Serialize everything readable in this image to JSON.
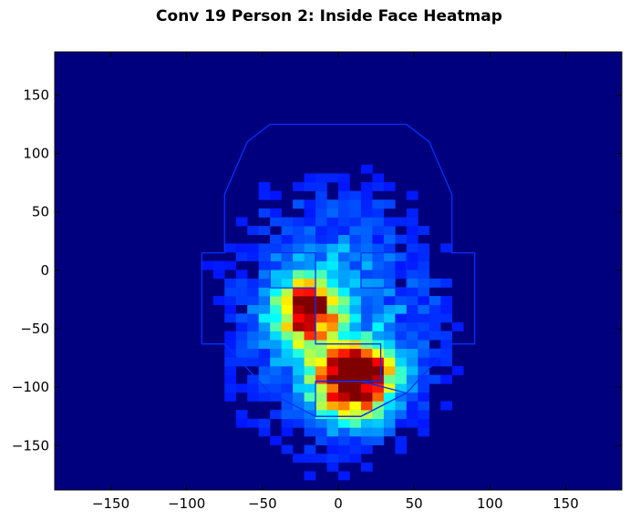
{
  "chart_data": {
    "type": "heatmap",
    "title": "Conv 19 Person 2: Inside Face Heatmap",
    "xlabel": "",
    "ylabel": "",
    "xlim": [
      -187,
      187
    ],
    "ylim": [
      -188,
      187
    ],
    "xticks": [
      -150,
      -100,
      -50,
      0,
      50,
      100,
      150
    ],
    "xtick_labels": [
      "−150",
      "−100",
      "−50",
      "0",
      "50",
      "100",
      "150"
    ],
    "yticks": [
      150,
      100,
      50,
      0,
      -50,
      -100,
      -150
    ],
    "ytick_labels": [
      "150",
      "100",
      "50",
      "0",
      "−50",
      "−100",
      "−150"
    ],
    "colormap": "jet",
    "background_color": "#00007f",
    "grid": false,
    "bin_size": 7.5,
    "hot_spots": [
      {
        "x": -20,
        "y": -35,
        "peak": 0.85,
        "spread_x": 14,
        "spread_y": 20
      },
      {
        "x": 10,
        "y": -100,
        "peak": 1.0,
        "spread_x": 16,
        "spread_y": 18
      },
      {
        "x": 12,
        "y": -80,
        "peak": 0.75,
        "spread_x": 14,
        "spread_y": 12
      }
    ],
    "face_outline": [
      [
        -90,
        15
      ],
      [
        -75,
        15
      ],
      [
        -75,
        65
      ],
      [
        -60,
        110
      ],
      [
        -45,
        125
      ],
      [
        45,
        125
      ],
      [
        60,
        110
      ],
      [
        75,
        65
      ],
      [
        75,
        15
      ],
      [
        90,
        15
      ],
      [
        90,
        -63
      ],
      [
        75,
        -63
      ],
      [
        45,
        -105
      ],
      [
        15,
        -125
      ],
      [
        -15,
        -125
      ],
      [
        -45,
        -105
      ],
      [
        -75,
        -63
      ],
      [
        -90,
        -63
      ],
      [
        -90,
        15
      ]
    ],
    "left_eye_outline": [
      [
        -45,
        15
      ],
      [
        -15,
        15
      ],
      [
        -15,
        -15
      ],
      [
        -30,
        -15
      ],
      [
        -45,
        -15
      ],
      [
        -45,
        15
      ]
    ],
    "right_eye_outline": [
      [
        15,
        15
      ],
      [
        45,
        15
      ],
      [
        45,
        -15
      ],
      [
        15,
        -15
      ],
      [
        15,
        15
      ]
    ],
    "nose_outline": [
      [
        -15,
        -15
      ],
      [
        -15,
        -63
      ],
      [
        28,
        -63
      ],
      [
        28,
        -95
      ],
      [
        -15,
        -95
      ]
    ],
    "mouth_outline": [
      [
        -15,
        -95
      ],
      [
        15,
        -95
      ],
      [
        45,
        -105
      ],
      [
        15,
        -125
      ],
      [
        -15,
        -125
      ],
      [
        -15,
        -95
      ]
    ],
    "outline_color": "#0033ff"
  }
}
